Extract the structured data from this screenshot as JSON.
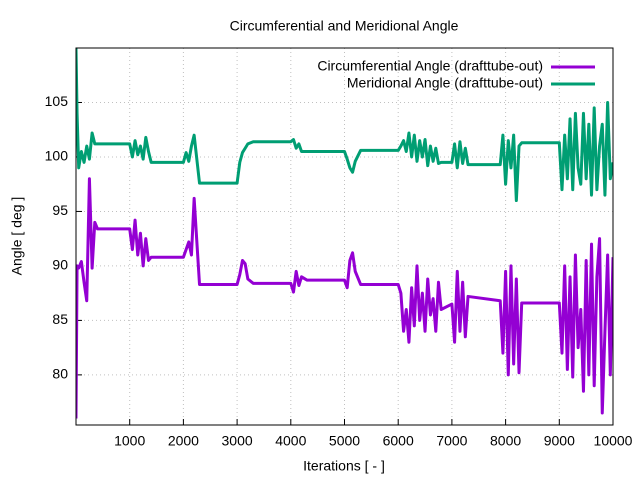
{
  "chart_data": {
    "type": "line",
    "title": "Circumferential and Meridional Angle",
    "x_label": "Iterations [ - ]",
    "y_label": "Angle [ deg ]",
    "x": [
      0,
      20,
      50,
      100,
      150,
      200,
      250,
      300,
      350,
      400,
      1000,
      1050,
      1100,
      1150,
      1200,
      1250,
      1300,
      1350,
      1400,
      2000,
      2050,
      2100,
      2150,
      2200,
      2300,
      3000,
      3050,
      3100,
      3150,
      3200,
      3300,
      4000,
      4050,
      4100,
      4150,
      4200,
      4300,
      5000,
      5050,
      5100,
      5150,
      5200,
      5300,
      6000,
      6050,
      6100,
      6150,
      6200,
      6250,
      6300,
      6350,
      6400,
      6450,
      6500,
      6550,
      6600,
      6650,
      6700,
      6750,
      6800,
      7000,
      7050,
      7100,
      7150,
      7200,
      7250,
      7300,
      7900,
      7950,
      8000,
      8050,
      8100,
      8150,
      8200,
      8250,
      8300,
      9000,
      9050,
      9100,
      9150,
      9200,
      9250,
      9300,
      9350,
      9400,
      9450,
      9500,
      9550,
      9600,
      9650,
      9700,
      9750,
      9800,
      9850,
      9900,
      9950,
      10000
    ],
    "series": [
      {
        "name": "Circumferential Angle (drafttube-out)",
        "color": "#9400d3",
        "values": [
          76,
          90,
          89.8,
          90.4,
          88.5,
          86.8,
          98,
          89.8,
          94,
          93.4,
          93.4,
          91.5,
          94.2,
          91,
          93,
          90,
          92.5,
          90.5,
          90.8,
          90.8,
          91.5,
          92.2,
          91,
          96.2,
          88.3,
          88.3,
          89.2,
          90.5,
          90.2,
          88.8,
          88.4,
          88.4,
          87.6,
          89.5,
          88.2,
          89,
          88.7,
          88.7,
          88,
          90.5,
          91.2,
          89.5,
          88.3,
          88.3,
          87.5,
          84,
          86,
          83,
          88,
          84.5,
          90,
          85,
          87.5,
          84,
          88.8,
          85.5,
          87,
          84,
          88.5,
          86,
          86.5,
          83,
          89.5,
          84,
          88.5,
          83.5,
          87.2,
          86.8,
          82,
          89.5,
          80,
          90,
          81,
          88.8,
          80.2,
          86.6,
          86.6,
          82,
          90,
          80.5,
          89,
          79.8,
          91,
          82.5,
          86,
          78.5,
          90.5,
          80,
          92,
          79,
          89,
          92.5,
          76.5,
          84,
          91,
          80,
          90.8
        ]
      },
      {
        "name": "Meridional Angle (drafttube-out)",
        "color": "#009e73",
        "values": [
          110,
          104,
          99,
          100.5,
          99.5,
          101,
          99.8,
          102.2,
          101.2,
          101.2,
          101.2,
          100,
          101.5,
          100.2,
          101,
          99.8,
          101.8,
          100.5,
          99.5,
          99.5,
          100.4,
          99.6,
          101,
          102,
          97.6,
          97.6,
          99.5,
          100.4,
          100.8,
          101.2,
          101.4,
          101.4,
          101.6,
          100.8,
          101.2,
          100.5,
          100.5,
          100.5,
          99.8,
          99,
          98.6,
          99.6,
          100.6,
          100.6,
          101,
          101.5,
          100.5,
          102.2,
          100,
          102,
          99.6,
          101.5,
          100,
          101.6,
          99.2,
          101,
          99.6,
          100.8,
          99.4,
          99.5,
          99.5,
          101.2,
          99,
          101.4,
          99.4,
          100.8,
          99.3,
          99.3,
          102,
          97.5,
          101.5,
          99,
          102,
          96,
          101,
          101.3,
          101.3,
          97,
          102,
          98,
          103.5,
          97,
          104,
          99,
          97.5,
          104,
          98,
          103,
          96.5,
          104.5,
          97,
          101,
          103,
          96.5,
          105,
          98,
          99.5
        ]
      }
    ],
    "xlim": [
      0,
      10000
    ],
    "xticks": [
      1000,
      2000,
      3000,
      4000,
      5000,
      6000,
      7000,
      8000,
      9000,
      10000
    ],
    "ylim": [
      75.4,
      110
    ],
    "yticks": [
      80,
      85,
      90,
      95,
      100,
      105
    ],
    "grid": true,
    "legend": "top right"
  }
}
